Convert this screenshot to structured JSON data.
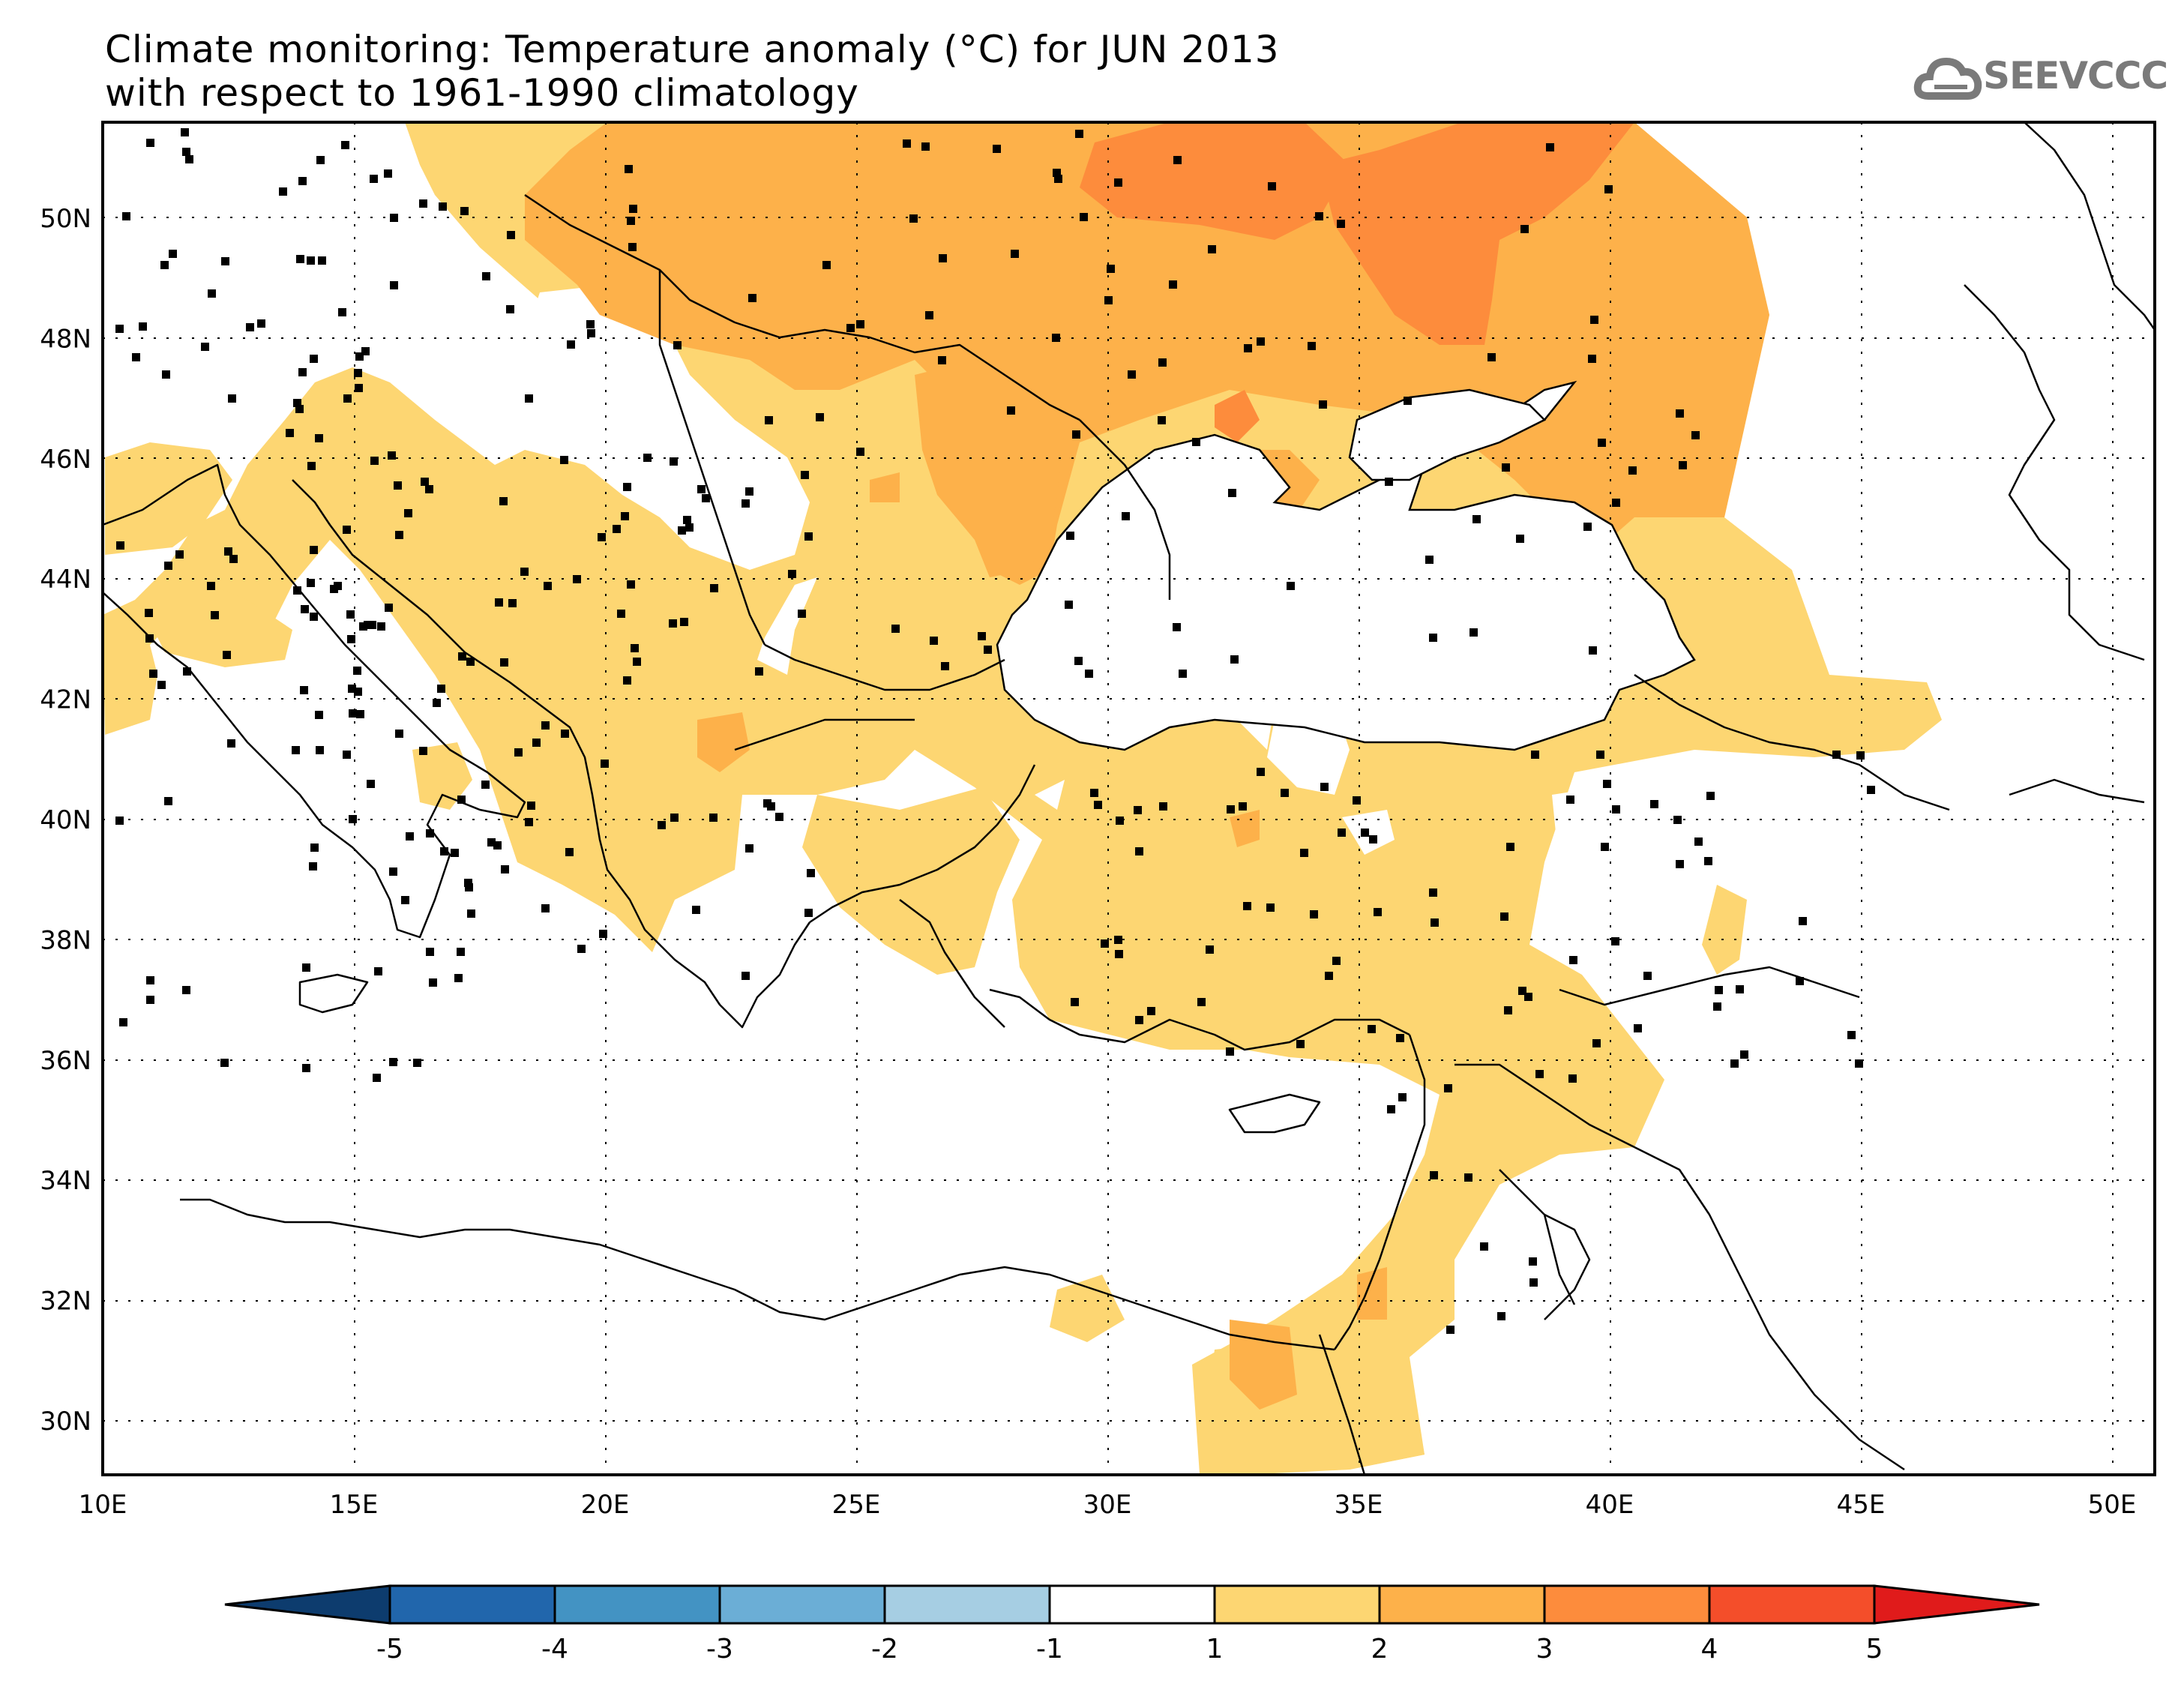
{
  "header": {
    "title_line1": "Climate monitoring: Temperature anomaly (°C) for JUN 2013",
    "title_line2": "with respect to 1961-1990 climatology",
    "logo_text": "SEEVCCC",
    "logo_icon": "cloud-logo-icon"
  },
  "map": {
    "lon_range": [
      10,
      51
    ],
    "lat_range": [
      29,
      51.5
    ],
    "lon_labels": [
      "10E",
      "15E",
      "20E",
      "25E",
      "30E",
      "35E",
      "40E",
      "45E",
      "50E"
    ],
    "lat_labels": [
      "30N",
      "32N",
      "34N",
      "36N",
      "38N",
      "40N",
      "42N",
      "44N",
      "46N",
      "48N",
      "50N"
    ],
    "grid": true
  },
  "colorbar": {
    "ticks": [
      "-5",
      "-4",
      "-3",
      "-2",
      "-1",
      "1",
      "2",
      "3",
      "4",
      "5"
    ],
    "colors": [
      "#0d3c6e",
      "#2166ac",
      "#4393c3",
      "#6baed6",
      "#a6cee3",
      "#ffffff",
      "#fdd672",
      "#fdb14a",
      "#fd8c3c",
      "#f44e2a",
      "#e01b1b"
    ]
  },
  "legend_colors": {
    "anomaly_1_2": "#fdd672",
    "anomaly_2_3": "#fdb14a",
    "anomaly_3_4": "#fd8c3c"
  }
}
